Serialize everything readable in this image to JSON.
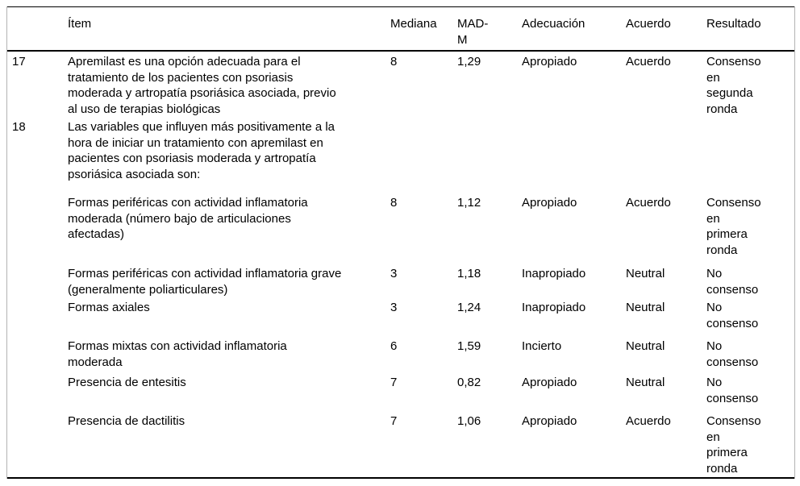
{
  "colors": {
    "background": "#ffffff",
    "text": "#000000",
    "rule": "#000000",
    "side_border": "#b3b3b3"
  },
  "table": {
    "headers": {
      "num": "",
      "item": "Ítem",
      "mediana": "Mediana",
      "mad_m": "MAD-M",
      "adecuacion": "Adecuación",
      "acuerdo": "Acuerdo",
      "resultado": "Resultado"
    },
    "rows": [
      {
        "num": "17",
        "item": "Apremilast es una opción adecuada para el\ntratamiento de los pacientes con psoriasis\nmoderada y artropatía psoriásica asociada, previo\nal uso de terapias biológicas",
        "mediana": "8",
        "mad_m": "1,29",
        "adecuacion": "Apropiado",
        "acuerdo": "Acuerdo",
        "resultado": "Consenso\nen\nsegunda\nronda"
      },
      {
        "num": "18",
        "item": "Las variables que influyen más positivamente a la\nhora de iniciar un tratamiento con apremilast en\npacientes con psoriasis moderada y artropatía\npsoriásica asociada son:",
        "mediana": "",
        "mad_m": "",
        "adecuacion": "",
        "acuerdo": "",
        "resultado": ""
      },
      {
        "num": "",
        "item": "Formas periféricas con actividad inflamatoria\nmoderada (número bajo de articulaciones\nafectadas)",
        "mediana": "8",
        "mad_m": "1,12",
        "adecuacion": "Apropiado",
        "acuerdo": "Acuerdo",
        "resultado": "Consenso\nen\nprimera\nronda"
      },
      {
        "num": "",
        "item": "Formas periféricas con actividad inflamatoria grave\n(generalmente poliarticulares)",
        "mediana": "3",
        "mad_m": "1,18",
        "adecuacion": "Inapropiado",
        "acuerdo": "Neutral",
        "resultado": "No\nconsenso"
      },
      {
        "num": "",
        "item": "Formas axiales",
        "mediana": "3",
        "mad_m": "1,24",
        "adecuacion": "Inapropiado",
        "acuerdo": "Neutral",
        "resultado": "No\nconsenso"
      },
      {
        "num": "",
        "item": "Formas mixtas con actividad inflamatoria\nmoderada",
        "mediana": "6",
        "mad_m": "1,59",
        "adecuacion": "Incierto",
        "acuerdo": "Neutral",
        "resultado": "No\nconsenso"
      },
      {
        "num": "",
        "item": "Presencia de entesitis",
        "mediana": "7",
        "mad_m": "0,82",
        "adecuacion": "Apropiado",
        "acuerdo": "Neutral",
        "resultado": "No\nconsenso"
      },
      {
        "num": "",
        "item": "Presencia de dactilitis",
        "mediana": "7",
        "mad_m": "1,06",
        "adecuacion": "Apropiado",
        "acuerdo": "Acuerdo",
        "resultado": "Consenso\nen\nprimera\nronda"
      }
    ]
  }
}
